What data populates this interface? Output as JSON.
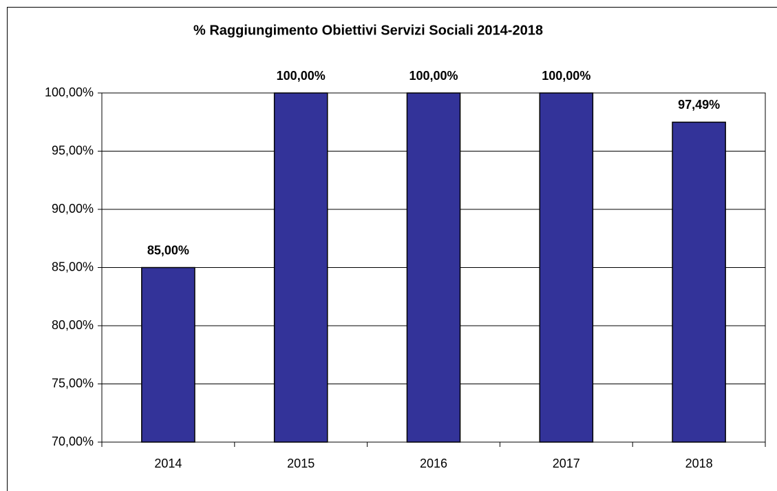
{
  "chart_data": {
    "type": "bar",
    "title": "% Raggiungimento Obiettivi Servizi Sociali 2014-2018",
    "categories": [
      "2014",
      "2015",
      "2016",
      "2017",
      "2018"
    ],
    "values": [
      85,
      100,
      100,
      100,
      97.49
    ],
    "value_labels": [
      "85,00%",
      "100,00%",
      "100,00%",
      "100,00%",
      "97,49%"
    ],
    "color": "#333399",
    "ylim": [
      70,
      100
    ],
    "yticks": [
      {
        "value": 70,
        "label": "70,00%"
      },
      {
        "value": 75,
        "label": "75,00%"
      },
      {
        "value": 80,
        "label": "80,00%"
      },
      {
        "value": 85,
        "label": "85,00%"
      },
      {
        "value": 90,
        "label": "90,00%"
      },
      {
        "value": 95,
        "label": "95,00%"
      },
      {
        "value": 100,
        "label": "100,00%"
      }
    ],
    "grid": true
  }
}
